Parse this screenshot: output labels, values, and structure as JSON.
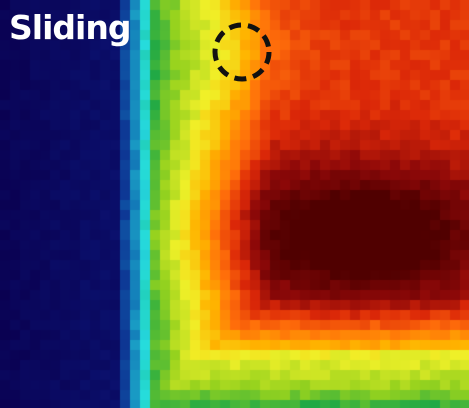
{
  "panel": {
    "title": "Sliding",
    "colormap": [
      "#0a0050",
      "#0b1e86",
      "#1170b4",
      "#26dcdc",
      "#12a44a",
      "#96d21e",
      "#f0f028",
      "#ffb400",
      "#ff6e0a",
      "#dc2808",
      "#8c0808",
      "#500000"
    ],
    "marker_style": "dashed-circle",
    "marker_color": "#111111"
  }
}
